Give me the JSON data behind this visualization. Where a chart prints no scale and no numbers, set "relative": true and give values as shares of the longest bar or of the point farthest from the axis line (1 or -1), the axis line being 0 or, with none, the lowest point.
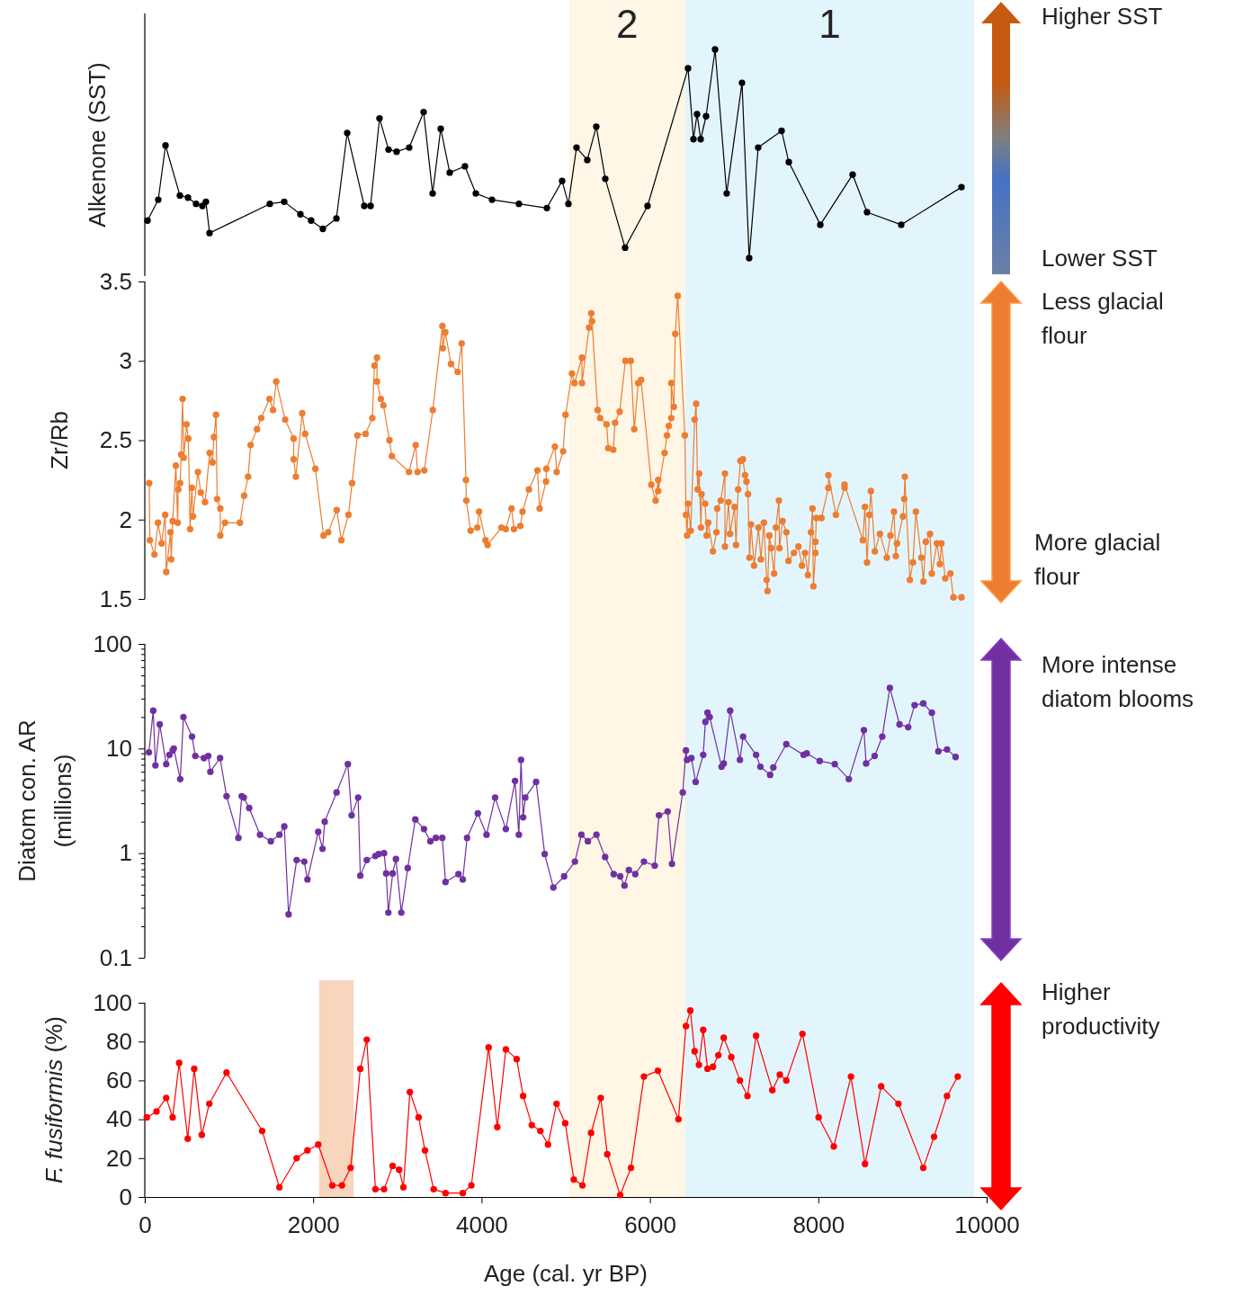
{
  "chart_data": [
    {
      "type": "line",
      "ylabel": "Alkenone (SST)",
      "relative": true,
      "marker": "circle",
      "line_style": "solid",
      "xlim": [
        0,
        10000
      ],
      "tick_labels": false,
      "annotations": [
        "Higher SST",
        "Lower SST"
      ],
      "bands": [
        {
          "axis": "x",
          "from": 5040,
          "to": 6420,
          "label": "2",
          "color": "#fff6e5"
        },
        {
          "axis": "x",
          "from": 6420,
          "to": 9850,
          "label": "1",
          "color": "#e3f5fc"
        }
      ],
      "series": [
        {
          "color": "#000000",
          "x": [
            32,
            160,
            246,
            417,
            513,
            609,
            684,
            726,
            769,
            1485,
            1656,
            1848,
            1976,
            2115,
            2276,
            2404,
            2607,
            2682,
            2788,
            2895,
            2991,
            3141,
            3312,
            3419,
            3515,
            3622,
            3803,
            3932,
            4124,
            4444,
            4776,
            4957,
            5032,
            5128,
            5256,
            5363,
            5470,
            5705,
            5972,
            6453,
            6517,
            6560,
            6603,
            6667,
            6774,
            6912,
            7094,
            7179,
            7286,
            7564,
            7650,
            8024,
            8408,
            8579,
            8985,
            9701
          ],
          "values": [
            0.18,
            0.28,
            0.54,
            0.3,
            0.29,
            0.26,
            0.25,
            0.27,
            0.12,
            0.26,
            0.27,
            0.21,
            0.18,
            0.14,
            0.19,
            0.6,
            0.25,
            0.25,
            0.67,
            0.52,
            0.51,
            0.53,
            0.7,
            0.31,
            0.62,
            0.41,
            0.44,
            0.31,
            0.28,
            0.26,
            0.24,
            0.37,
            0.26,
            0.53,
            0.47,
            0.63,
            0.38,
            0.05,
            0.25,
            0.91,
            0.57,
            0.69,
            0.57,
            0.68,
            1,
            0.31,
            0.84,
            0,
            0.53,
            0.61,
            0.46,
            0.16,
            0.4,
            0.22,
            0.16,
            0.34
          ]
        }
      ]
    },
    {
      "type": "line",
      "ylabel": "Zr/Rb",
      "marker": "circle",
      "line_style": "solid",
      "xlim": [
        0,
        10000
      ],
      "ylim": [
        1.5,
        3.5
      ],
      "yticks": [
        1.5,
        2,
        2.5,
        3,
        3.5
      ],
      "tick_labels": "y",
      "annotations": [
        "Less glacial\nflour",
        "More glacial\nflour"
      ],
      "bands": [
        {
          "axis": "x",
          "from": 5040,
          "to": 6420,
          "color": "#fff6e5"
        },
        {
          "axis": "x",
          "from": 6420,
          "to": 9850,
          "color": "#e3f5fc"
        }
      ],
      "series": [
        {
          "color": "#ed7d31",
          "x": [
            52,
            60,
            115,
            157,
            200,
            242,
            255,
            305,
            314,
            331,
            369,
            390,
            398,
            419,
            432,
            449,
            462,
            496,
            517,
            538,
            559,
            572,
            631,
            665,
            716,
            770,
            804,
            821,
            846,
            859,
            897,
            897,
            952,
            1130,
            1180,
            1227,
            1257,
            1333,
            1383,
            1481,
            1523,
            1561,
            1667,
            1768,
            1768,
            1794,
            1870,
            1904,
            2026,
            2123,
            2178,
            2280,
            2335,
            2419,
            2462,
            2525,
            2622,
            2703,
            2728,
            2758,
            2758,
            2804,
            2834,
            2906,
            2935,
            3138,
            3218,
            3240,
            3320,
            3421,
            3535,
            3540,
            3569,
            3637,
            3717,
            3764,
            3815,
            3819,
            3870,
            3950,
            3971,
            4047,
            4072,
            4237,
            4288,
            4356,
            4385,
            4461,
            4487,
            4563,
            4664,
            4690,
            4766,
            4770,
            4871,
            4893,
            4969,
            4998,
            5074,
            5104,
            5193,
            5193,
            5278,
            5303,
            5312,
            5379,
            5409,
            5485,
            5506,
            5565,
            5586,
            5641,
            5709,
            5772,
            5814,
            5861,
            5895,
            6017,
            6068,
            6098,
            6098,
            6174,
            6203,
            6225,
            6254,
            6254,
            6284,
            6301,
            6330,
            6415,
            6428,
            6442,
            6453,
            6485,
            6531,
            6549,
            6567,
            6585,
            6606,
            6613,
            6656,
            6674,
            6692,
            6749,
            6791,
            6799,
            6841,
            6891,
            6891,
            6934,
            6952,
            7005,
            7023,
            7048,
            7076,
            7105,
            7130,
            7147,
            7165,
            7183,
            7201,
            7237,
            7290,
            7318,
            7354,
            7386,
            7397,
            7418,
            7439,
            7475,
            7496,
            7532,
            7539,
            7575,
            7621,
            7646,
            7710,
            7764,
            7806,
            7842,
            7877,
            7913,
            7931,
            7942,
            7966,
            7966,
            7977,
            8038,
            8120,
            8120,
            8209,
            8312,
            8312,
            8529,
            8554,
            8579,
            8607,
            8625,
            8672,
            8732,
            8814,
            8857,
            8899,
            8921,
            8935,
            9006,
            9021,
            9028,
            9088,
            9124,
            9159,
            9224,
            9249,
            9277,
            9327,
            9348,
            9409,
            9444,
            9462,
            9508,
            9569,
            9605,
            9701
          ],
          "values": [
            2.23,
            1.87,
            1.78,
            1.98,
            1.85,
            2.03,
            1.67,
            1.92,
            1.75,
            1.99,
            2.34,
            1.98,
            2.19,
            2.23,
            2.41,
            2.76,
            2.39,
            2.6,
            2.51,
            1.94,
            2.2,
            2.02,
            2.3,
            2.17,
            2.11,
            2.42,
            2.36,
            2.52,
            2.66,
            2.13,
            2.07,
            1.9,
            1.98,
            1.98,
            2.15,
            2.27,
            2.47,
            2.57,
            2.64,
            2.76,
            2.69,
            2.87,
            2.63,
            2.51,
            2.38,
            2.27,
            2.67,
            2.54,
            2.32,
            1.9,
            1.92,
            2.06,
            1.87,
            2.03,
            2.23,
            2.53,
            2.54,
            2.64,
            2.97,
            3.02,
            2.87,
            2.76,
            2.72,
            2.5,
            2.4,
            2.3,
            2.47,
            2.3,
            2.31,
            2.69,
            3.22,
            3.08,
            3.18,
            2.98,
            2.93,
            3.11,
            2.25,
            2.12,
            1.93,
            1.95,
            2.05,
            1.87,
            1.84,
            1.95,
            1.94,
            2.07,
            1.94,
            1.96,
            2.05,
            2.19,
            2.31,
            2.07,
            2.24,
            2.32,
            2.46,
            2.3,
            2.43,
            2.66,
            2.92,
            2.86,
            3.02,
            2.86,
            3.21,
            3.3,
            3.25,
            2.69,
            2.64,
            2.6,
            2.45,
            2.44,
            2.61,
            2.68,
            3.0,
            3.0,
            2.57,
            2.86,
            2.88,
            2.22,
            2.12,
            2.25,
            2.18,
            2.42,
            2.53,
            2.59,
            2.64,
            2.86,
            2.71,
            3.17,
            3.41,
            2.53,
            2.03,
            1.9,
            2.1,
            1.93,
            2.63,
            2.73,
            2.19,
            2.29,
            1.95,
            2.16,
            2.1,
            1.9,
            1.98,
            1.8,
            1.92,
            2.07,
            2.12,
            2.29,
            1.83,
            2.11,
            1.91,
            2.08,
            1.84,
            2.19,
            2.37,
            2.38,
            2.28,
            2.24,
            2.16,
            1.76,
            1.97,
            1.71,
            1.95,
            1.75,
            1.98,
            1.62,
            1.55,
            1.9,
            1.82,
            1.66,
            1.95,
            2.12,
            1.82,
            1.99,
            1.92,
            1.74,
            1.79,
            1.83,
            1.71,
            1.79,
            1.65,
            1.92,
            2.07,
            1.58,
            1.79,
            1.86,
            2.01,
            2.01,
            2.2,
            2.28,
            2.03,
            2.2,
            2.22,
            1.87,
            2.08,
            1.73,
            2.03,
            2.18,
            1.8,
            1.91,
            1.76,
            1.9,
            2.05,
            1.77,
            1.85,
            2.02,
            2.13,
            2.27,
            1.62,
            1.73,
            2.05,
            1.76,
            1.61,
            1.86,
            1.91,
            1.66,
            1.85,
            1.72,
            1.85,
            1.63,
            1.66,
            1.51,
            1.51
          ]
        }
      ]
    },
    {
      "type": "line",
      "ylabel": "Diatom con. AR\n(millions)",
      "log": true,
      "marker": "circle",
      "line_style": "solid",
      "xlim": [
        0,
        10000
      ],
      "ylim": [
        0.1,
        100
      ],
      "tick_labels": "y",
      "yticks": [
        0.1,
        {
          "value": 0.2,
          "label": null
        },
        {
          "value": 0.3,
          "label": null
        },
        {
          "value": 0.4,
          "label": null
        },
        {
          "value": 0.5,
          "label": null
        },
        {
          "value": 0.6,
          "label": null
        },
        {
          "value": 0.7,
          "label": null
        },
        {
          "value": 0.8,
          "label": null
        },
        {
          "value": 0.9,
          "label": null
        },
        1,
        {
          "value": 2,
          "label": null
        },
        {
          "value": 3,
          "label": null
        },
        {
          "value": 4,
          "label": null
        },
        {
          "value": 5,
          "label": null
        },
        {
          "value": 6,
          "label": null
        },
        {
          "value": 7,
          "label": null
        },
        {
          "value": 8,
          "label": null
        },
        {
          "value": 9,
          "label": null
        },
        10,
        {
          "value": 20,
          "label": null
        },
        {
          "value": 30,
          "label": null
        },
        {
          "value": 40,
          "label": null
        },
        {
          "value": 50,
          "label": null
        },
        {
          "value": 60,
          "label": null
        },
        {
          "value": 70,
          "label": null
        },
        {
          "value": 80,
          "label": null
        },
        {
          "value": 90,
          "label": null
        },
        100
      ],
      "annotations": [
        "More intense\ndiatom blooms"
      ],
      "bands": [
        {
          "axis": "x",
          "from": 5040,
          "to": 6420,
          "color": "#fff6e5"
        },
        {
          "axis": "x",
          "from": 6420,
          "to": 9850,
          "color": "#e3f5fc"
        }
      ],
      "series": [
        {
          "color": "#7030a0",
          "x": [
            49,
            100,
            126,
            177,
            254,
            292,
            331,
            344,
            421,
            459,
            561,
            600,
            702,
            754,
            779,
            894,
            971,
            1112,
            1151,
            1176,
            1240,
            1369,
            1497,
            1599,
            1657,
            1708,
            1804,
            1894,
            1932,
            2060,
            2111,
            2137,
            2278,
            2412,
            2457,
            2534,
            2560,
            2637,
            2739,
            2778,
            2842,
            2867,
            2893,
            2944,
            2983,
            3047,
            3123,
            3213,
            3316,
            3392,
            3457,
            3533,
            3572,
            3726,
            3777,
            3828,
            3956,
            4059,
            4161,
            4289,
            4398,
            4443,
            4469,
            4494,
            4520,
            4648,
            4750,
            4853,
            4981,
            5109,
            5186,
            5263,
            5365,
            5468,
            5570,
            5647,
            5698,
            5750,
            5826,
            5929,
            6057,
            6108,
            6211,
            6262,
            6390,
            6428,
            6441,
            6492,
            6543,
            6633,
            6659,
            6684,
            6710,
            6851,
            6877,
            6953,
            7069,
            7107,
            7261,
            7312,
            7428,
            7466,
            7620,
            7825,
            7863,
            8017,
            8196,
            8363,
            8542,
            8568,
            8670,
            8760,
            8850,
            8965,
            9068,
            9144,
            9247,
            9349,
            9426,
            9529,
            9631
          ],
          "values": [
            9.2,
            23,
            6.9,
            17,
            7.1,
            8.7,
            9.6,
            10,
            5.1,
            20,
            13,
            8.5,
            8.1,
            8.5,
            6.0,
            8.1,
            3.5,
            1.4,
            3.5,
            3.4,
            2.7,
            1.5,
            1.3,
            1.5,
            1.8,
            0.26,
            0.86,
            0.83,
            0.56,
            1.6,
            1.1,
            2.0,
            3.8,
            7.1,
            2.3,
            3.4,
            0.61,
            0.86,
            0.94,
            0.98,
            1.0,
            0.64,
            0.27,
            0.64,
            0.88,
            0.27,
            0.72,
            2.1,
            1.7,
            1.3,
            1.4,
            1.4,
            0.53,
            0.63,
            0.56,
            1.4,
            2.4,
            1.5,
            3.4,
            1.7,
            4.9,
            1.5,
            7.8,
            2.2,
            3.4,
            4.8,
            0.98,
            0.47,
            0.6,
            0.83,
            1.5,
            1.3,
            1.5,
            0.92,
            0.63,
            0.6,
            0.49,
            0.69,
            0.63,
            0.83,
            0.76,
            2.3,
            2.5,
            0.79,
            3.8,
            9.6,
            7.8,
            8.1,
            4.8,
            8.7,
            18,
            22,
            20,
            6.7,
            7.2,
            23,
            7.8,
            13,
            8.7,
            6.7,
            5.6,
            6.6,
            11,
            8.7,
            9.0,
            7.6,
            7.1,
            5.1,
            15,
            7.2,
            8.5,
            13,
            38,
            17,
            16,
            26,
            27,
            22,
            9.4,
            9.8,
            8.3
          ]
        }
      ]
    },
    {
      "type": "line",
      "ylabel": "F. fusiformis (%)",
      "xlabel": "Age (cal. yr BP)",
      "marker": "circle",
      "line_style": "solid",
      "xlim": [
        0,
        10000
      ],
      "xticks": [
        0,
        2000,
        4000,
        6000,
        8000,
        10000
      ],
      "ylim": [
        0,
        100
      ],
      "yticks": [
        0,
        20,
        40,
        60,
        80,
        100
      ],
      "annotations": [
        "Higher\nproductivity"
      ],
      "bands": [
        {
          "axis": "x",
          "from": 5040,
          "to": 6420,
          "color": "#fff6e5"
        },
        {
          "axis": "x",
          "from": 6420,
          "to": 9850,
          "color": "#e3f5fc"
        },
        {
          "axis": "x",
          "from": 2070,
          "to": 2480,
          "color": "#f8d5bd"
        }
      ],
      "series": [
        {
          "color": "#ff0000",
          "x": [
            24,
            139,
            254,
            331,
            408,
            510,
            587,
            677,
            766,
            971,
            1394,
            1599,
            1804,
            1932,
            2060,
            2227,
            2342,
            2445,
            2560,
            2637,
            2739,
            2842,
            2944,
            3021,
            3072,
            3149,
            3252,
            3328,
            3431,
            3572,
            3777,
            3879,
            4084,
            4187,
            4289,
            4417,
            4494,
            4597,
            4699,
            4789,
            4891,
            4994,
            5096,
            5199,
            5301,
            5416,
            5493,
            5647,
            5775,
            5929,
            6095,
            6339,
            6428,
            6480,
            6531,
            6582,
            6633,
            6684,
            6749,
            6813,
            6877,
            6967,
            7069,
            7159,
            7261,
            7454,
            7543,
            7620,
            7812,
            8004,
            8184,
            8388,
            8555,
            8747,
            8952,
            9247,
            9375,
            9529,
            9657
          ],
          "values": [
            41,
            44,
            51,
            41,
            69,
            30,
            66,
            32,
            48,
            64,
            34,
            5,
            20,
            24,
            27,
            6,
            6,
            15,
            66,
            81,
            4,
            4,
            16,
            14,
            5,
            54,
            41,
            24,
            4,
            2,
            2,
            6,
            77,
            36,
            76,
            71,
            52,
            37,
            34,
            27,
            48,
            38,
            9,
            6,
            33,
            51,
            22,
            1,
            15,
            62,
            65,
            40,
            88,
            96,
            75,
            68,
            86,
            66,
            67,
            73,
            82,
            72,
            60,
            52,
            83,
            55,
            63,
            60,
            84,
            41,
            26,
            62,
            17,
            57,
            48,
            15,
            31,
            52,
            62
          ]
        }
      ]
    }
  ]
}
